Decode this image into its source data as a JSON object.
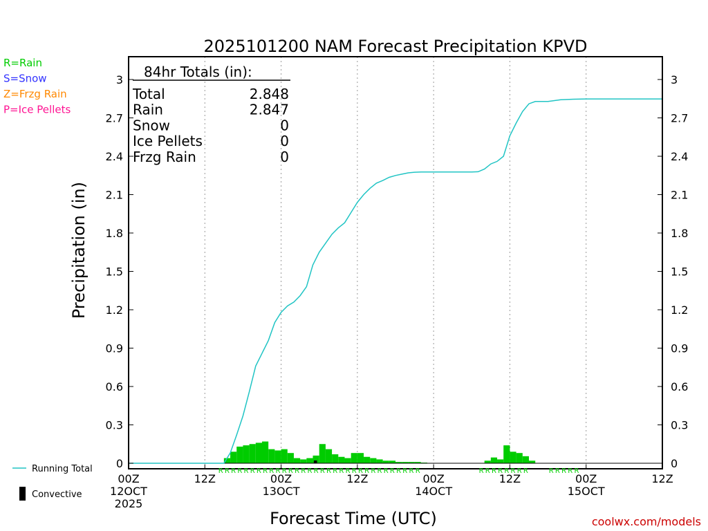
{
  "chart_data": {
    "type": "bar+line",
    "title": "2025101200 NAM Forecast Precipitation KPVD",
    "xlabel": "Forecast Time (UTC)",
    "ylabel": "Precipitation (in)",
    "credit": "coolwx.com/models",
    "ylim": [
      0,
      3.15
    ],
    "xlim_hours": [
      0,
      84
    ],
    "yticks": [
      "0",
      "0.3",
      "0.6",
      "0.9",
      "1.2",
      "1.5",
      "1.8",
      "2.1",
      "2.4",
      "2.7",
      "3"
    ],
    "xticks": [
      {
        "hour": 0,
        "lines": [
          "00Z",
          "12OCT",
          "2025"
        ]
      },
      {
        "hour": 12,
        "lines": [
          "12Z"
        ]
      },
      {
        "hour": 24,
        "lines": [
          "00Z",
          "13OCT"
        ]
      },
      {
        "hour": 36,
        "lines": [
          "12Z"
        ]
      },
      {
        "hour": 48,
        "lines": [
          "00Z",
          "14OCT"
        ]
      },
      {
        "hour": 60,
        "lines": [
          "12Z"
        ]
      },
      {
        "hour": 72,
        "lines": [
          "00Z",
          "15OCT"
        ]
      },
      {
        "hour": 84,
        "lines": [
          "12Z"
        ]
      }
    ],
    "legend": [
      {
        "label": "R=Rain",
        "color": "#00cc00"
      },
      {
        "label": "S=Snow",
        "color": "#3333ff"
      },
      {
        "label": "Z=Frzg Rain",
        "color": "#ff8800"
      },
      {
        "label": "P=Ice Pellets",
        "color": "#ff1493"
      }
    ],
    "series_legend": {
      "running_total": "Running Total",
      "convective": "Convective"
    },
    "totals_box": {
      "header": "84hr Totals (in):",
      "rows": [
        {
          "label": "Total",
          "value": "2.848"
        },
        {
          "label": "Rain",
          "value": "2.847"
        },
        {
          "label": "Snow",
          "value": "0"
        },
        {
          "label": "Ice Pellets",
          "value": "0"
        },
        {
          "label": "Frzg Rain",
          "value": "0"
        }
      ]
    },
    "hourly_precip": {
      "hours": [
        16,
        17,
        18,
        19,
        20,
        21,
        22,
        23,
        24,
        25,
        26,
        27,
        28,
        29,
        30,
        31,
        32,
        33,
        34,
        35,
        36,
        37,
        38,
        39,
        40,
        41,
        42,
        43,
        44,
        45,
        46,
        47,
        57,
        58,
        59,
        60,
        61,
        62,
        63,
        64
      ],
      "values": [
        0.04,
        0.09,
        0.13,
        0.14,
        0.15,
        0.16,
        0.17,
        0.11,
        0.1,
        0.11,
        0.08,
        0.04,
        0.03,
        0.04,
        0.06,
        0.15,
        0.11,
        0.07,
        0.05,
        0.04,
        0.08,
        0.08,
        0.05,
        0.04,
        0.03,
        0.02,
        0.02,
        0.01,
        0.01,
        0.01,
        0.01,
        0.005,
        0.02,
        0.045,
        0.03,
        0.14,
        0.09,
        0.08,
        0.055,
        0.02
      ]
    },
    "precip_type_hours": {
      "rain": [
        15,
        16,
        17,
        18,
        19,
        20,
        21,
        22,
        23,
        24,
        25,
        26,
        27,
        28,
        29,
        30,
        31,
        32,
        33,
        34,
        35,
        36,
        37,
        38,
        39,
        40,
        41,
        42,
        43,
        44,
        45,
        46,
        56,
        57,
        58,
        59,
        60,
        61,
        62,
        63,
        67,
        68,
        69,
        70,
        71
      ],
      "marker_letter": "R"
    },
    "convective_hours": [
      30
    ],
    "running_total": {
      "hours": [
        0,
        15,
        16,
        17,
        18,
        19,
        20,
        21,
        22,
        23,
        24,
        25,
        26,
        27,
        28,
        29,
        30,
        31,
        32,
        33,
        34,
        35,
        36,
        37,
        38,
        39,
        40,
        41,
        42,
        43,
        44,
        45,
        46,
        47,
        48,
        50,
        52,
        54,
        55,
        56,
        56.5,
        57,
        58,
        59,
        60,
        61,
        62,
        63,
        64,
        66,
        68,
        70,
        72,
        84
      ],
      "values": [
        0,
        0,
        0.08,
        0.22,
        0.37,
        0.56,
        0.76,
        0.86,
        0.96,
        1.1,
        1.18,
        1.23,
        1.26,
        1.31,
        1.38,
        1.55,
        1.65,
        1.72,
        1.79,
        1.84,
        1.88,
        1.96,
        2.04,
        2.1,
        2.15,
        2.19,
        2.21,
        2.235,
        2.25,
        2.26,
        2.27,
        2.275,
        2.277,
        2.277,
        2.277,
        2.277,
        2.277,
        2.277,
        2.279,
        2.3,
        2.32,
        2.34,
        2.36,
        2.4,
        2.56,
        2.66,
        2.75,
        2.81,
        2.828,
        2.828,
        2.842,
        2.846,
        2.848,
        2.848
      ]
    },
    "colors": {
      "rain": "#00cc00",
      "running_total": "#20c4c4",
      "convective": "#000000",
      "credit": "#cc0000",
      "grid": "#999999"
    }
  }
}
